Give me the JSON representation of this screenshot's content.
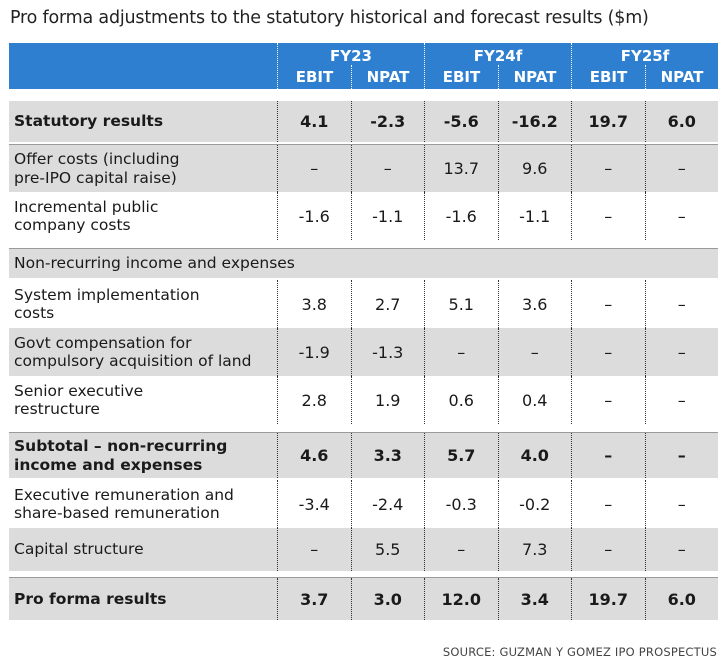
{
  "title": "Pro forma adjustments to the statutory historical and forecast results ($m)",
  "header": {
    "groups": [
      {
        "name": "FY23",
        "cols": [
          "EBIT",
          "NPAT"
        ]
      },
      {
        "name": "FY24f",
        "cols": [
          "EBIT",
          "NPAT"
        ]
      },
      {
        "name": "FY25f",
        "cols": [
          "EBIT",
          "NPAT"
        ]
      }
    ]
  },
  "rows": {
    "statutory": {
      "label": "Statutory results",
      "values": [
        "4.1",
        "-2.3",
        "-5.6",
        "-16.2",
        "19.7",
        "6.0"
      ]
    },
    "offer_costs": {
      "label_line1": "Offer costs (including",
      "label_line2": "pre-IPO capital raise)",
      "values": [
        "–",
        "–",
        "13.7",
        "9.6",
        "–",
        "–"
      ]
    },
    "incremental": {
      "label_line1": "Incremental public",
      "label_line2": "company costs",
      "values": [
        "-1.6",
        "-1.1",
        "-1.6",
        "-1.1",
        "–",
        "–"
      ]
    },
    "nonrecurring_head": {
      "label": "Non-recurring income and expenses"
    },
    "system": {
      "label_line1": "System implementation",
      "label_line2": "costs",
      "values": [
        "3.8",
        "2.7",
        "5.1",
        "3.6",
        "–",
        "–"
      ]
    },
    "govt": {
      "label_line1": "Govt compensation for",
      "label_line2": "compulsory acquisition of land",
      "values": [
        "-1.9",
        "-1.3",
        "–",
        "–",
        "–",
        "–"
      ]
    },
    "senior": {
      "label_line1": "Senior executive",
      "label_line2": "restructure",
      "values": [
        "2.8",
        "1.9",
        "0.6",
        "0.4",
        "–",
        "–"
      ]
    },
    "subtotal": {
      "label_line1": "Subtotal – non-recurring",
      "label_line2": "income and expenses",
      "values": [
        "4.6",
        "3.3",
        "5.7",
        "4.0",
        "–",
        "–"
      ]
    },
    "exec_rem": {
      "label_line1": "Executive remuneration and",
      "label_line2": "share-based remuneration",
      "values": [
        "-3.4",
        "-2.4",
        "-0.3",
        "-0.2",
        "–",
        "–"
      ]
    },
    "capital": {
      "label": "Capital structure",
      "values": [
        "–",
        "5.5",
        "–",
        "7.3",
        "–",
        "–"
      ]
    },
    "proforma": {
      "label": "Pro forma results",
      "values": [
        "3.7",
        "3.0",
        "12.0",
        "3.4",
        "19.7",
        "6.0"
      ]
    }
  },
  "source": "SOURCE: GUZMAN Y GOMEZ IPO PROSPECTUS"
}
